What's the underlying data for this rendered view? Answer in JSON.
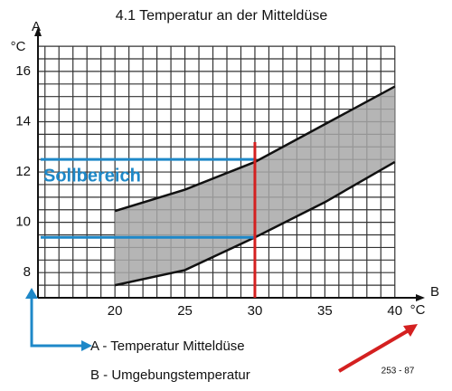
{
  "chart_data": {
    "type": "band",
    "title": "4.1 Temperatur an der Mitteldüse",
    "y_label": "°C",
    "y_axis_letter": "A",
    "x_label": "°C",
    "x_axis_letter": "B",
    "x": [
      20,
      25,
      30,
      35,
      40
    ],
    "upper": [
      10.45,
      11.3,
      12.4,
      13.9,
      15.4
    ],
    "lower": [
      7.5,
      8.1,
      9.4,
      10.8,
      12.4
    ],
    "band_color": "#a8a8a8",
    "line_color": "#111111",
    "xlim": [
      14.5,
      41.5
    ],
    "ylim": [
      7,
      17.4
    ],
    "xticks": [
      20,
      25,
      30,
      35,
      40
    ],
    "yticks": [
      8,
      10,
      12,
      14,
      16
    ],
    "grid": true,
    "x_gridlines": [
      15,
      16,
      17,
      18,
      19,
      20,
      21,
      22,
      23,
      24,
      25,
      26,
      27,
      28,
      29,
      30,
      31,
      32,
      33,
      34,
      35,
      36,
      37,
      38,
      39,
      40
    ],
    "y_gridlines": [
      7.5,
      8,
      8.5,
      9,
      9.5,
      10,
      10.5,
      11,
      11.5,
      12,
      12.5,
      13,
      13.5,
      14,
      14.5,
      15,
      15.5,
      16,
      16.5,
      17
    ],
    "annotations": {
      "target_label": "Sollbereich",
      "target_lines": [
        12.5,
        9.4
      ],
      "target_color": "#1e88c8",
      "marker_x": 30,
      "marker_color": "#d42020",
      "legend_a": "A - Temperatur Mitteldüse",
      "legend_b": "B - Umgebungstemperatur",
      "code": "253 - 87"
    }
  }
}
